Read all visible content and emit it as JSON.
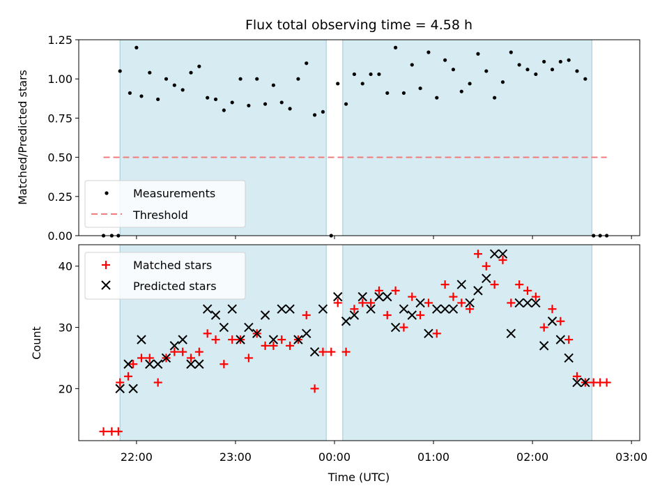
{
  "chart_data": [
    {
      "type": "scatter",
      "title": "Flux total observing time = 4.58 h",
      "ylabel": "Matched/Predicted stars",
      "xlabel": "",
      "ylim": [
        0,
        1.25
      ],
      "xlim": [
        "21:25",
        "03:05"
      ],
      "grid": false,
      "legend_position": "lower-left",
      "x_ticks": [
        "22:00",
        "23:00",
        "00:00",
        "01:00",
        "02:00",
        "03:00"
      ],
      "y_ticks": [
        "0.00",
        "0.25",
        "0.50",
        "0.75",
        "1.00",
        "1.25"
      ],
      "shaded_intervals": [
        [
          "21:50",
          "23:55"
        ],
        [
          "00:05",
          "02:36"
        ]
      ],
      "threshold": {
        "name": "Threshold",
        "value": 0.5,
        "x_range": [
          "21:40",
          "02:45"
        ],
        "color": "#f07c7c",
        "style": "dashed"
      },
      "series": [
        {
          "name": "Measurements",
          "color": "#000000",
          "marker": "dot",
          "x": [
            "21:40",
            "21:45",
            "21:49",
            "21:50",
            "21:56",
            "22:00",
            "22:03",
            "22:08",
            "22:13",
            "22:18",
            "22:23",
            "22:28",
            "22:33",
            "22:38",
            "22:43",
            "22:48",
            "22:53",
            "22:58",
            "23:03",
            "23:08",
            "23:13",
            "23:18",
            "23:23",
            "23:28",
            "23:33",
            "23:38",
            "23:43",
            "23:48",
            "23:53",
            "23:58",
            "00:02",
            "00:07",
            "00:12",
            "00:17",
            "00:22",
            "00:27",
            "00:32",
            "00:37",
            "00:42",
            "00:47",
            "00:52",
            "00:57",
            "01:02",
            "01:07",
            "01:12",
            "01:17",
            "01:22",
            "01:27",
            "01:32",
            "01:37",
            "01:42",
            "01:47",
            "01:52",
            "01:57",
            "02:02",
            "02:07",
            "02:12",
            "02:17",
            "02:22",
            "02:27",
            "02:32",
            "02:37",
            "02:41",
            "02:45"
          ],
          "y": [
            0.0,
            0.0,
            0.0,
            1.05,
            0.91,
            1.2,
            0.89,
            1.04,
            0.87,
            1.0,
            0.96,
            0.93,
            1.04,
            1.08,
            0.88,
            0.87,
            0.8,
            0.85,
            1.0,
            0.83,
            1.0,
            0.84,
            0.96,
            0.85,
            0.81,
            1.0,
            1.1,
            0.77,
            0.79,
            0.0,
            0.97,
            0.84,
            1.03,
            0.97,
            1.03,
            1.03,
            0.91,
            1.2,
            0.91,
            1.09,
            0.94,
            1.17,
            0.88,
            1.12,
            1.06,
            0.92,
            0.97,
            1.16,
            1.05,
            0.88,
            0.98,
            1.17,
            1.09,
            1.06,
            1.03,
            1.11,
            1.06,
            1.11,
            1.12,
            1.05,
            1.0,
            0.0,
            0.0,
            0.0
          ]
        }
      ]
    },
    {
      "type": "scatter",
      "title": "",
      "xlabel": "Time (UTC)",
      "ylabel": "Count",
      "ylim": [
        11.5,
        43.5
      ],
      "xlim": [
        "21:25",
        "03:05"
      ],
      "grid": false,
      "legend_position": "top-left",
      "x_ticks": [
        "22:00",
        "23:00",
        "00:00",
        "01:00",
        "02:00",
        "03:00"
      ],
      "y_ticks": [
        "20",
        "30",
        "40"
      ],
      "shaded_intervals": [
        [
          "21:50",
          "23:55"
        ],
        [
          "00:05",
          "02:36"
        ]
      ],
      "series": [
        {
          "name": "Matched stars",
          "color": "#ff0000",
          "marker": "plus",
          "x": [
            "21:40",
            "21:45",
            "21:49",
            "21:50",
            "21:55",
            "21:58",
            "22:03",
            "22:08",
            "22:13",
            "22:18",
            "22:23",
            "22:28",
            "22:33",
            "22:38",
            "22:43",
            "22:48",
            "22:53",
            "22:58",
            "23:03",
            "23:08",
            "23:13",
            "23:18",
            "23:23",
            "23:28",
            "23:33",
            "23:38",
            "23:43",
            "23:48",
            "23:53",
            "23:58",
            "00:02",
            "00:07",
            "00:12",
            "00:17",
            "00:22",
            "00:27",
            "00:32",
            "00:37",
            "00:42",
            "00:47",
            "00:52",
            "00:57",
            "01:02",
            "01:07",
            "01:12",
            "01:17",
            "01:22",
            "01:27",
            "01:32",
            "01:37",
            "01:42",
            "01:47",
            "01:52",
            "01:57",
            "02:02",
            "02:07",
            "02:12",
            "02:17",
            "02:22",
            "02:27",
            "02:32",
            "02:37",
            "02:41",
            "02:45"
          ],
          "y": [
            13,
            13,
            13,
            21,
            22,
            24,
            25,
            25,
            21,
            25,
            26,
            26,
            25,
            26,
            29,
            28,
            24,
            28,
            28,
            25,
            29,
            27,
            27,
            28,
            27,
            28,
            32,
            20,
            26,
            26,
            34,
            26,
            33,
            34,
            34,
            36,
            32,
            36,
            30,
            35,
            32,
            34,
            29,
            37,
            35,
            34,
            33,
            42,
            40,
            37,
            41,
            34,
            37,
            36,
            35,
            30,
            33,
            31,
            28,
            22,
            21,
            21,
            21,
            21
          ]
        },
        {
          "name": "Predicted stars",
          "color": "#000000",
          "marker": "x",
          "x": [
            "21:50",
            "21:55",
            "21:58",
            "22:03",
            "22:08",
            "22:13",
            "22:18",
            "22:23",
            "22:28",
            "22:33",
            "22:38",
            "22:43",
            "22:48",
            "22:53",
            "22:58",
            "23:03",
            "23:08",
            "23:13",
            "23:18",
            "23:23",
            "23:28",
            "23:33",
            "23:38",
            "23:43",
            "23:48",
            "23:53",
            "00:02",
            "00:07",
            "00:12",
            "00:17",
            "00:22",
            "00:27",
            "00:32",
            "00:37",
            "00:42",
            "00:47",
            "00:52",
            "00:57",
            "01:02",
            "01:07",
            "01:12",
            "01:17",
            "01:22",
            "01:27",
            "01:32",
            "01:37",
            "01:42",
            "01:47",
            "01:52",
            "01:57",
            "02:02",
            "02:07",
            "02:12",
            "02:17",
            "02:22",
            "02:27",
            "02:32"
          ],
          "y": [
            20,
            24,
            20,
            28,
            24,
            24,
            25,
            27,
            28,
            24,
            24,
            33,
            32,
            30,
            33,
            28,
            30,
            29,
            32,
            28,
            33,
            33,
            28,
            29,
            26,
            33,
            35,
            31,
            32,
            35,
            33,
            35,
            35,
            30,
            33,
            32,
            34,
            29,
            33,
            33,
            33,
            37,
            34,
            36,
            38,
            42,
            42,
            29,
            34,
            34,
            34,
            27,
            31,
            28,
            25,
            21,
            21
          ]
        }
      ]
    }
  ]
}
